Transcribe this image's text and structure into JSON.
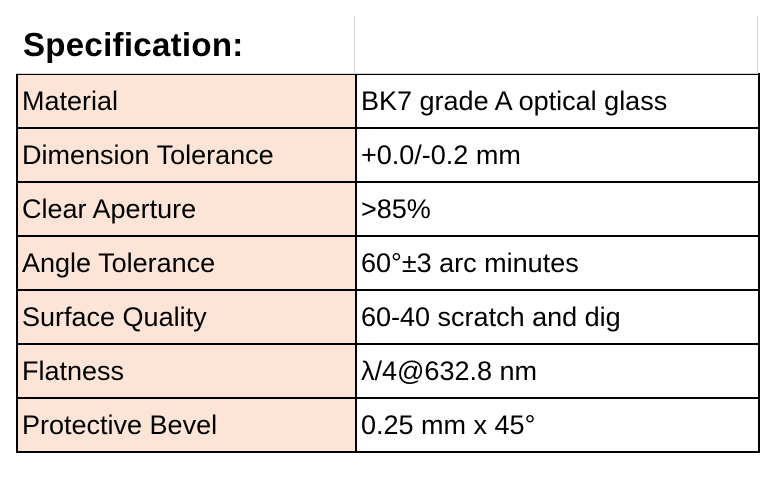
{
  "title": "Specification:",
  "rows": [
    {
      "label": "Material",
      "value": "BK7 grade A optical glass"
    },
    {
      "label": "Dimension Tolerance",
      "value": "+0.0/-0.2 mm"
    },
    {
      "label": "Clear Aperture",
      "value": ">85%"
    },
    {
      "label": "Angle Tolerance",
      "value": "60°±3 arc minutes"
    },
    {
      "label": "Surface Quality",
      "value": "60-40 scratch and dig"
    },
    {
      "label": "Flatness",
      "value": "λ/4@632.8 nm"
    },
    {
      "label": "Protective Bevel",
      "value": "0.25 mm x 45°"
    }
  ],
  "colors": {
    "label_fill": "#fce4d6",
    "border": "#000000"
  }
}
